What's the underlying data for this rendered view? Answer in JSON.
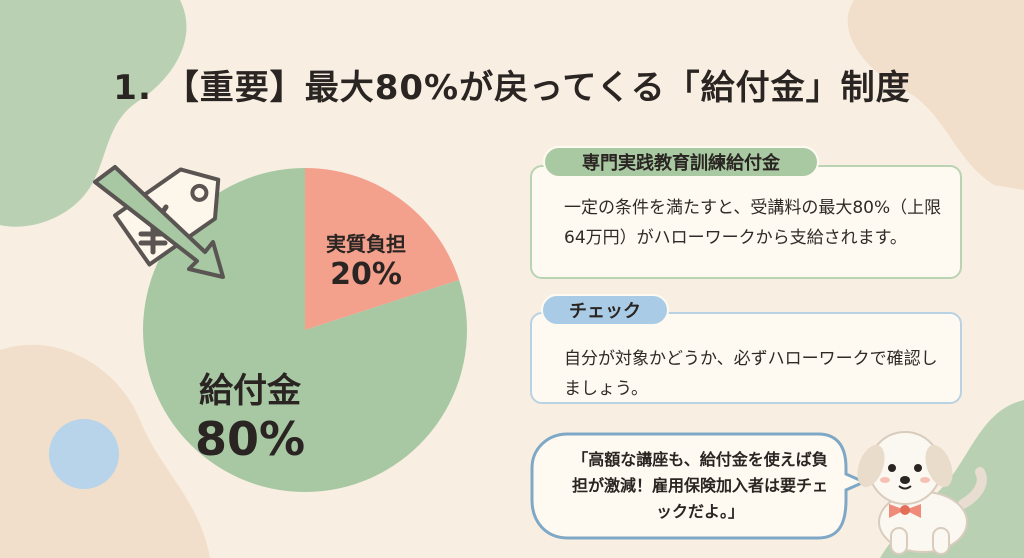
{
  "title": "1. 【重要】最大80%が戻ってくる「給付金」制度",
  "chart_data": {
    "type": "pie",
    "slices": [
      {
        "category": "実質負担",
        "label": "20%",
        "value": 20,
        "color": "#f3a08d"
      },
      {
        "category": "給付金",
        "label": "80%",
        "value": 80,
        "color": "#a7c8a3"
      }
    ]
  },
  "cards": {
    "benefit": {
      "tag": "専門実践教育訓練給付金",
      "text": "一定の条件を満たすと、受講料の最大80%（上限64万円）がハローワークから支給されます。"
    },
    "check": {
      "tag": "チェック",
      "text": "自分が対象かどうか、必ずハローワークで確認しましょう。"
    }
  },
  "speech": {
    "text": "「高額な講座も、給付金を使えば負担が激減！雇用保険加入者は要チェックだよ。」"
  },
  "colors": {
    "background": "#f8efe2",
    "green": "#a7c8a3",
    "coral": "#f3a08d",
    "blue": "#a9cbe6"
  },
  "icons": [
    "price-tag-icon",
    "yen-icon",
    "down-arrow-icon",
    "dog-mascot-icon"
  ]
}
